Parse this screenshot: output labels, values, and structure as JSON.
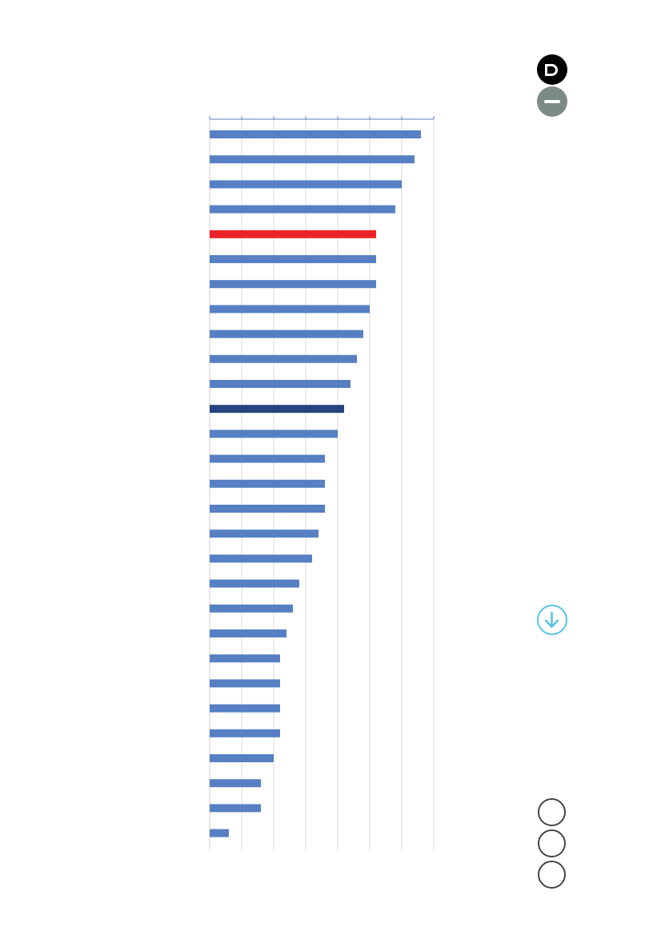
{
  "chart_data": {
    "type": "bar",
    "orientation": "horizontal",
    "title": "",
    "xlabel": "",
    "ylabel": "",
    "xlim": [
      0,
      35
    ],
    "x_ticks": [
      0,
      5,
      10,
      15,
      20,
      25,
      30,
      35
    ],
    "grid": true,
    "tick_labels_visible": false,
    "values": [
      33,
      32,
      30,
      29,
      26,
      26,
      26,
      25,
      24,
      23,
      22,
      21,
      20,
      18,
      18,
      18,
      17,
      16,
      14,
      13,
      12,
      11,
      11,
      11,
      11,
      10,
      8,
      8,
      3
    ],
    "highlight": {
      "4": "#ec2227",
      "11": "#25447f"
    },
    "colors": {
      "bar": "#5680c3",
      "highlight_red": "#ec2227",
      "highlight_navy": "#25447f",
      "axis": "#5680c3",
      "grid": "#d9d9d9"
    }
  },
  "icons": {
    "top_black": "letter-d-circle-icon",
    "top_gray": "minus-circle-icon",
    "download": "arrow-down-circle-icon",
    "rings": [
      "empty-circle-icon",
      "empty-circle-icon",
      "empty-circle-icon"
    ]
  }
}
